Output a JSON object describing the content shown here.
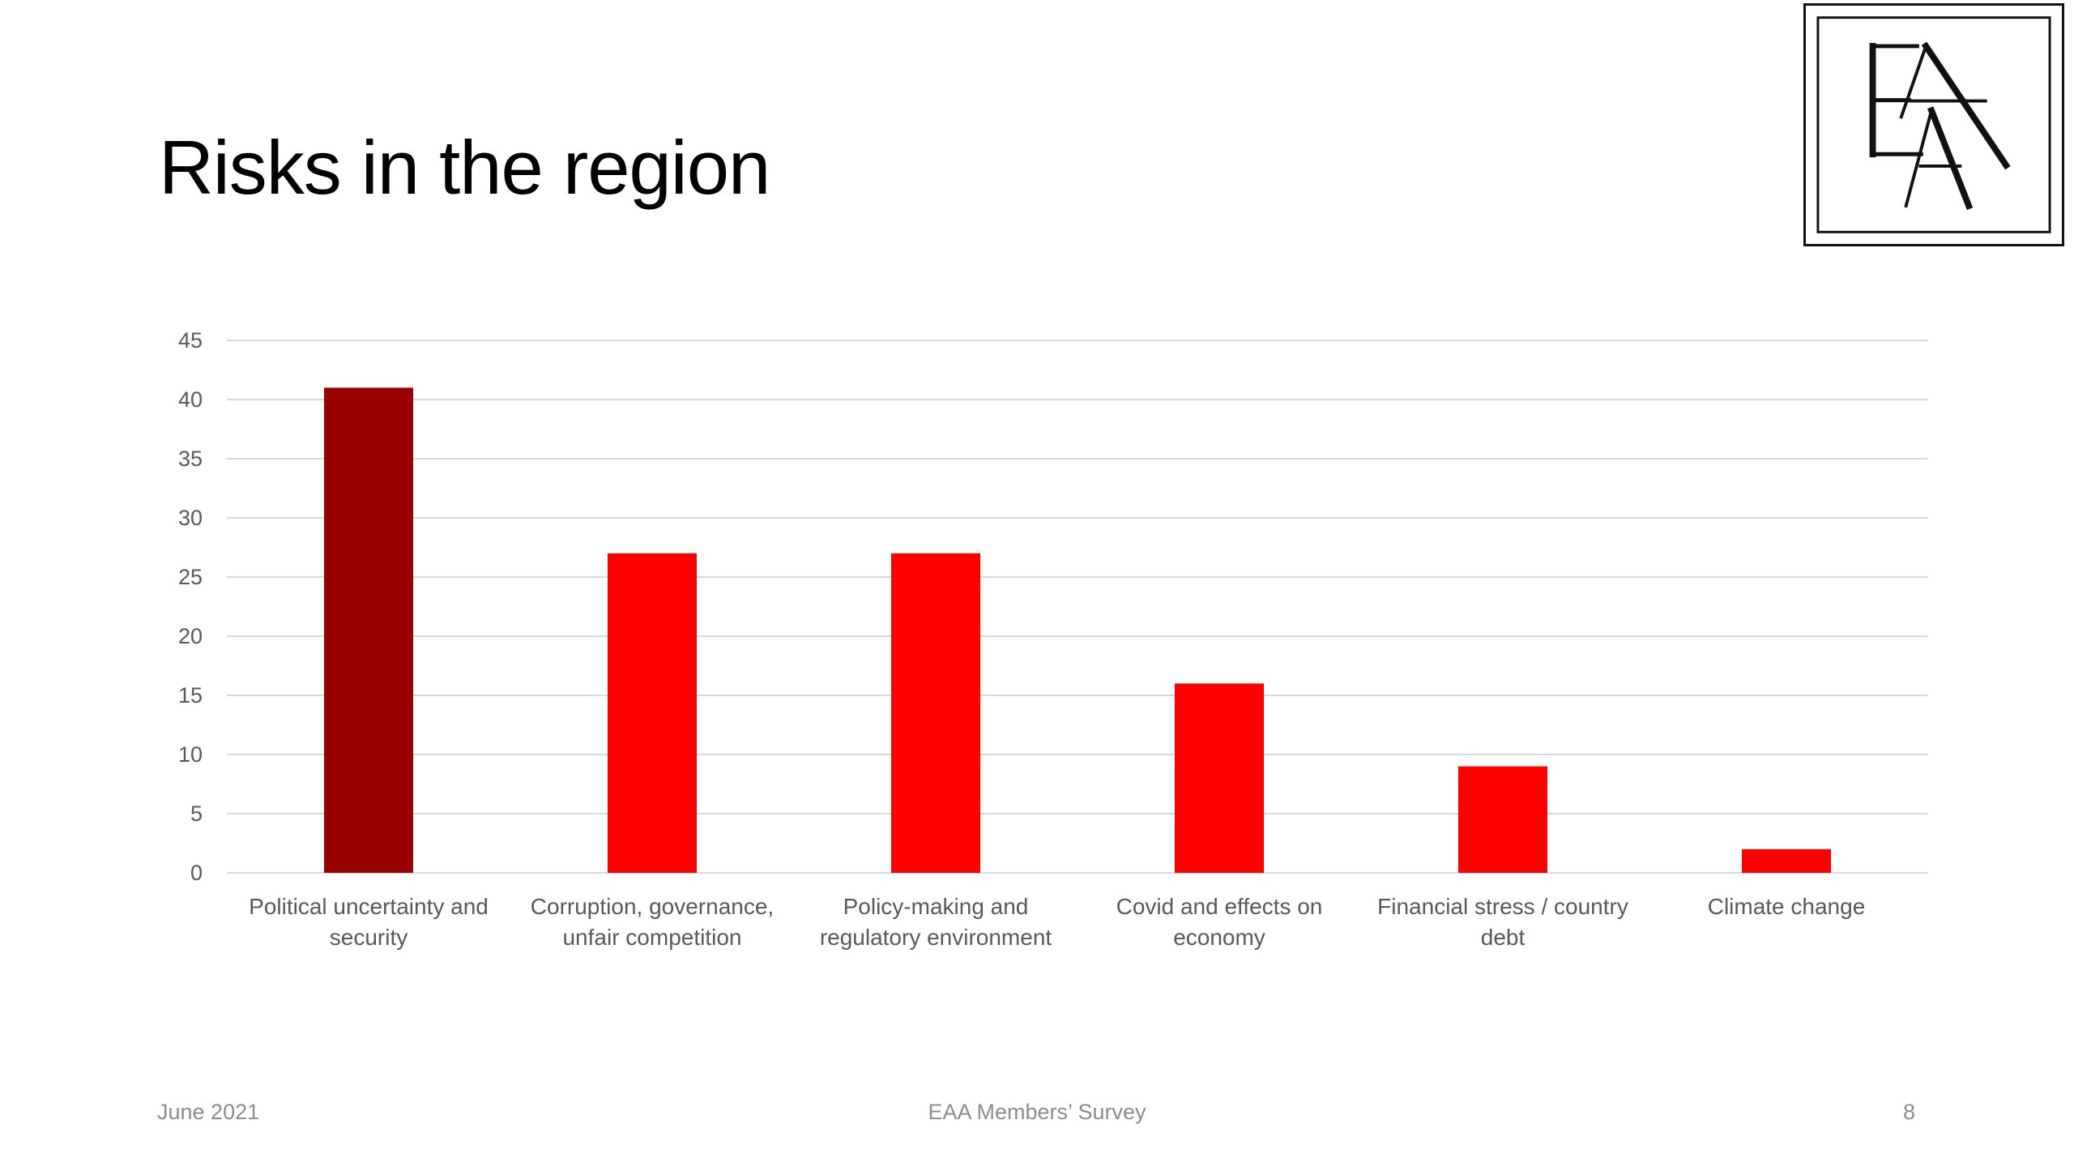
{
  "slide": {
    "title": "Risks in the region",
    "logo_text": "EAA",
    "footer": {
      "date": "June 2021",
      "center": "EAA Members’ Survey",
      "page": "8"
    }
  },
  "colors": {
    "highlight_bar": "#990000",
    "bar": "#ff0000",
    "grid": "#d9d9d9",
    "axis_text": "#595959",
    "footer_text": "#8c8c8c"
  },
  "chart_data": {
    "type": "bar",
    "categories": [
      [
        "Political uncertainty and",
        "security"
      ],
      [
        "Corruption, governance,",
        "unfair competition"
      ],
      [
        "Policy-making and",
        "regulatory environment"
      ],
      [
        "Covid and effects on",
        "economy"
      ],
      [
        "Financial stress / country",
        "debt"
      ],
      [
        "Climate change"
      ]
    ],
    "values": [
      41,
      27,
      27,
      16,
      9,
      2
    ],
    "highlight_index": 0,
    "ylim": [
      0,
      45
    ],
    "yticks": [
      0,
      5,
      10,
      15,
      20,
      25,
      30,
      35,
      40,
      45
    ],
    "grid": true,
    "legend": "none"
  }
}
